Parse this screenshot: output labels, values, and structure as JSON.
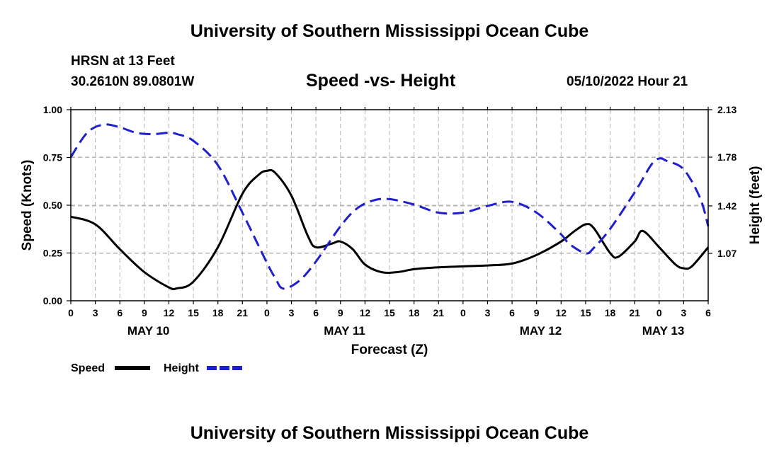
{
  "header": {
    "title": "University of Southern Mississippi Ocean Cube",
    "station": "HRSN at 13 Feet",
    "coords": "30.2610N  89.0801W",
    "subtitle": "Speed -vs- Height",
    "datetime": "05/10/2022 Hour 21"
  },
  "footer": {
    "title": "University of Southern Mississippi Ocean Cube"
  },
  "chart_data": {
    "type": "line",
    "title": "Speed -vs- Height",
    "xlabel": "Forecast (Z)",
    "ylabel": "Speed (Knots)",
    "y2label": "Height (feet)",
    "xlim": [
      0,
      78
    ],
    "ylim": [
      0,
      1.0
    ],
    "y2lim": [
      0.72,
      2.13
    ],
    "grid": true,
    "x_ticks": [
      0,
      3,
      6,
      9,
      12,
      15,
      18,
      21,
      24,
      27,
      30,
      33,
      36,
      39,
      42,
      45,
      48,
      51,
      54,
      57,
      60,
      63,
      66,
      69,
      72,
      75,
      78
    ],
    "x_tick_labels": [
      "0",
      "3",
      "6",
      "9",
      "12",
      "15",
      "18",
      "21",
      "0",
      "3",
      "6",
      "9",
      "12",
      "15",
      "18",
      "21",
      "0",
      "3",
      "6",
      "9",
      "12",
      "15",
      "18",
      "21",
      "0",
      "3",
      "6"
    ],
    "date_labels": [
      {
        "label": "MAY 10",
        "x": 9.5
      },
      {
        "label": "MAY 11",
        "x": 33.5
      },
      {
        "label": "MAY 12",
        "x": 57.5
      },
      {
        "label": "MAY 13",
        "x": 72.5
      }
    ],
    "y_ticks": [
      "0.00",
      "0.25",
      "0.50",
      "0.75",
      "1.00"
    ],
    "y2_ticks": [
      "1.07",
      "1.42",
      "1.78",
      "2.13"
    ],
    "legend_position": "bottom-left",
    "series": [
      {
        "name": "Speed",
        "axis": "left",
        "color": "#000000",
        "dash": "solid",
        "x": [
          0,
          3,
          6,
          9,
          12,
          13,
          15,
          18,
          21,
          23,
          24,
          25,
          27,
          29,
          30,
          32,
          33,
          34.5,
          36,
          38,
          40,
          42,
          45,
          48,
          51,
          54,
          57,
          60,
          61.5,
          63,
          64,
          66,
          67,
          69,
          70,
          72,
          74,
          75,
          76,
          78
        ],
        "values": [
          0.44,
          0.4,
          0.27,
          0.15,
          0.07,
          0.065,
          0.1,
          0.28,
          0.56,
          0.66,
          0.68,
          0.67,
          0.55,
          0.34,
          0.28,
          0.3,
          0.31,
          0.27,
          0.19,
          0.15,
          0.15,
          0.165,
          0.175,
          0.18,
          0.185,
          0.195,
          0.24,
          0.31,
          0.36,
          0.4,
          0.38,
          0.25,
          0.23,
          0.31,
          0.365,
          0.28,
          0.19,
          0.17,
          0.18,
          0.28
        ]
      },
      {
        "name": "Height",
        "axis": "right",
        "color": "#1f1fcc",
        "dash": "dashed",
        "x": [
          0,
          2,
          4,
          6,
          8,
          10,
          12,
          13,
          15,
          18,
          21,
          24,
          25,
          26,
          28,
          30,
          33,
          35,
          37,
          39,
          42,
          45,
          48,
          51,
          54,
          57,
          60,
          61,
          63,
          64,
          66,
          69,
          71,
          72,
          73,
          75,
          77,
          78
        ],
        "values": [
          1.78,
          1.96,
          2.02,
          2.0,
          1.96,
          1.95,
          1.96,
          1.95,
          1.9,
          1.72,
          1.37,
          1.0,
          0.89,
          0.81,
          0.87,
          1.01,
          1.27,
          1.4,
          1.46,
          1.47,
          1.43,
          1.37,
          1.37,
          1.42,
          1.45,
          1.37,
          1.21,
          1.14,
          1.07,
          1.11,
          1.25,
          1.52,
          1.72,
          1.77,
          1.75,
          1.69,
          1.48,
          1.27
        ]
      }
    ]
  }
}
